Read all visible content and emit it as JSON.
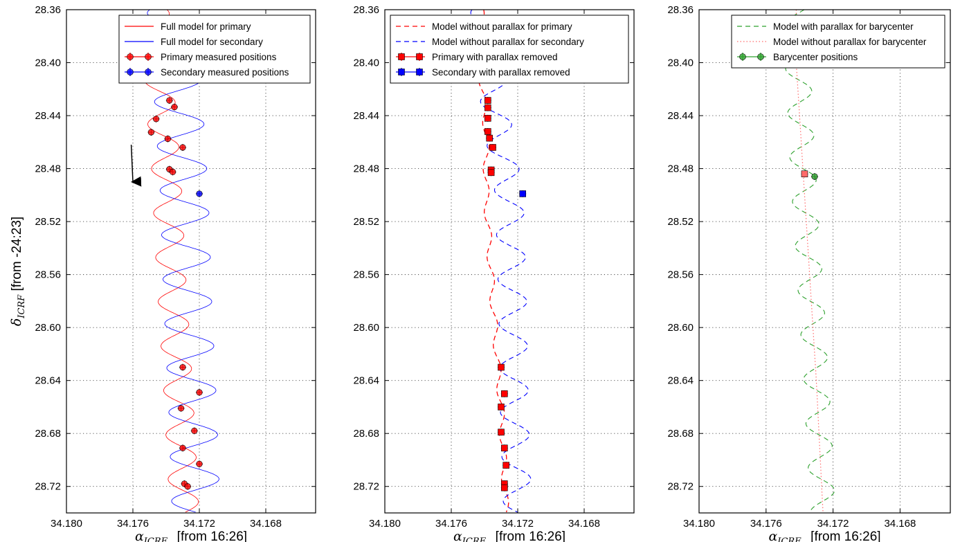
{
  "figure": {
    "ylabel_symbol": "δ",
    "ylabel_subscript": "ICRF",
    "ylabel_suffix": "[from  -24:23]"
  },
  "chart_data": [
    {
      "type": "line",
      "xlabel_symbol": "α",
      "xlabel_subscript": "ICRF",
      "xlabel_suffix": "[from  16:26]",
      "xlim": [
        34.18,
        34.165
      ],
      "ylim": [
        28.74,
        28.36
      ],
      "x_ticks": [
        "34.180",
        "34.176",
        "34.172",
        "34.168"
      ],
      "y_ticks": [
        "28.36",
        "28.40",
        "28.44",
        "28.48",
        "28.52",
        "28.56",
        "28.60",
        "28.64",
        "28.68",
        "28.72"
      ],
      "grid": true,
      "legend_position": "top-right",
      "legend": [
        {
          "label": "Full model for primary",
          "kind": "line",
          "color": "#ff0000",
          "dash": "none"
        },
        {
          "label": "Full model for secondary",
          "kind": "line",
          "color": "#0000ff",
          "dash": "none"
        },
        {
          "label": "Primary measured positions",
          "kind": "marker",
          "color": "#ff0000",
          "marker": "circle"
        },
        {
          "label": "Secondary measured positions",
          "kind": "marker",
          "color": "#0000ff",
          "marker": "circle"
        }
      ],
      "annotations": [
        {
          "type": "arrow",
          "from": [
            34.1761,
            28.462
          ],
          "to": [
            34.176,
            28.49
          ],
          "color": "#000000"
        }
      ],
      "curves": [
        {
          "name": "Full model for primary",
          "color": "#ff0000",
          "dash": "none",
          "width": 0.8,
          "base": [
            [
              34.1747,
              28.36
            ],
            [
              34.1744,
              28.42
            ],
            [
              34.174,
              28.48
            ],
            [
              34.1737,
              28.56
            ],
            [
              34.1733,
              28.64
            ],
            [
              34.1729,
              28.74
            ]
          ],
          "amp": 0.00088,
          "period": 0.0335,
          "phase": 0.6
        },
        {
          "name": "Full model for secondary",
          "color": "#0000ff",
          "dash": "none",
          "width": 0.8,
          "base": [
            [
              34.1737,
              28.36
            ],
            [
              34.1733,
              28.42
            ],
            [
              34.1729,
              28.5
            ],
            [
              34.1727,
              28.58
            ],
            [
              34.1724,
              28.66
            ],
            [
              34.1722,
              28.74
            ]
          ],
          "amp": 0.00145,
          "period": 0.0335,
          "phase": 3.8
        }
      ],
      "points": [
        {
          "series": "Primary measured positions",
          "marker": "circle",
          "color": "#ff0000",
          "xy": [
            [
              34.1738,
              28.4285
            ],
            [
              34.1735,
              28.4335
            ],
            [
              34.1746,
              28.4425
            ],
            [
              34.1749,
              28.4525
            ],
            [
              34.1739,
              28.4575
            ],
            [
              34.173,
              28.464
            ],
            [
              34.1738,
              28.4805
            ],
            [
              34.1736,
              28.4825
            ],
            [
              34.173,
              28.63
            ],
            [
              34.172,
              28.649
            ],
            [
              34.1731,
              28.661
            ],
            [
              34.1723,
              28.678
            ],
            [
              34.173,
              28.691
            ],
            [
              34.172,
              28.703
            ],
            [
              34.1729,
              28.718
            ],
            [
              34.1727,
              28.72
            ]
          ]
        },
        {
          "series": "Secondary measured positions",
          "marker": "circle",
          "color": "#0000ff",
          "xy": [
            [
              34.172,
              28.499
            ]
          ]
        }
      ]
    },
    {
      "type": "line",
      "xlabel_symbol": "α",
      "xlabel_subscript": "ICRF",
      "xlabel_suffix": "[from  16:26]",
      "xlim": [
        34.18,
        34.165
      ],
      "ylim": [
        28.74,
        28.36
      ],
      "x_ticks": [
        "34.180",
        "34.176",
        "34.172",
        "34.168"
      ],
      "y_ticks": [
        "28.36",
        "28.40",
        "28.44",
        "28.48",
        "28.52",
        "28.56",
        "28.60",
        "28.64",
        "28.68",
        "28.72"
      ],
      "grid": true,
      "legend_position": "top-right",
      "legend": [
        {
          "label": "Model without parallax for primary",
          "kind": "line",
          "color": "#ff0000",
          "dash": "7 5"
        },
        {
          "label": "Model without parallax for secondary",
          "kind": "line",
          "color": "#0000ff",
          "dash": "7 5"
        },
        {
          "label": "Primary with parallax removed",
          "kind": "marker",
          "color": "#ff0000",
          "marker": "square"
        },
        {
          "label": "Secondary with parallax removed",
          "kind": "marker",
          "color": "#0000ff",
          "marker": "square"
        }
      ],
      "annotations": [],
      "curves": [
        {
          "name": "Model without parallax for primary",
          "color": "#ff0000",
          "dash": "7 5",
          "width": 1.3,
          "base": [
            [
              34.1742,
              28.41
            ],
            [
              34.1739,
              28.45
            ],
            [
              34.1739,
              28.5
            ],
            [
              34.1735,
              28.58
            ],
            [
              34.173,
              28.66
            ],
            [
              34.1727,
              28.74
            ]
          ],
          "amp": 0.00018,
          "period": 0.0335,
          "phase": 0.6
        },
        {
          "name": "Model without parallax for secondary",
          "color": "#0000ff",
          "dash": "7 5",
          "width": 1.1,
          "base": [
            [
              34.174,
              28.36
            ],
            [
              34.1733,
              28.44
            ],
            [
              34.1725,
              28.5
            ],
            [
              34.1723,
              28.58
            ],
            [
              34.1722,
              28.66
            ],
            [
              34.172,
              28.74
            ]
          ],
          "amp": 0.00085,
          "period": 0.0335,
          "phase": 3.8
        }
      ],
      "points": [
        {
          "series": "Primary with parallax removed",
          "marker": "square",
          "color": "#ff0000",
          "xy": [
            [
              34.1738,
              28.4285
            ],
            [
              34.1738,
              28.434
            ],
            [
              34.1738,
              28.442
            ],
            [
              34.1738,
              28.452
            ],
            [
              34.1737,
              28.457
            ],
            [
              34.1735,
              28.464
            ],
            [
              34.1736,
              28.481
            ],
            [
              34.1736,
              28.483
            ],
            [
              34.173,
              28.63
            ],
            [
              34.1728,
              28.65
            ],
            [
              34.173,
              28.66
            ],
            [
              34.173,
              28.679
            ],
            [
              34.1728,
              28.691
            ],
            [
              34.1727,
              28.704
            ],
            [
              34.1728,
              28.718
            ],
            [
              34.1728,
              28.721
            ]
          ]
        },
        {
          "series": "Secondary with parallax removed",
          "marker": "square",
          "color": "#0000ff",
          "xy": [
            [
              34.1717,
              28.499
            ]
          ]
        }
      ]
    },
    {
      "type": "line",
      "xlabel_symbol": "α",
      "xlabel_subscript": "ICRF",
      "xlabel_suffix": "[from  16:26]",
      "xlim": [
        34.18,
        34.165
      ],
      "ylim": [
        28.74,
        28.36
      ],
      "x_ticks": [
        "34.180",
        "34.176",
        "34.172",
        "34.168"
      ],
      "y_ticks": [
        "28.36",
        "28.40",
        "28.44",
        "28.48",
        "28.52",
        "28.56",
        "28.60",
        "28.64",
        "28.68",
        "28.72"
      ],
      "grid": true,
      "legend_position": "top-right",
      "legend": [
        {
          "label": "Model with parallax for barycenter",
          "kind": "line",
          "color": "#2ca02c",
          "dash": "7 5"
        },
        {
          "label": "Model without parallax for barycenter",
          "kind": "line",
          "color": "#ff6a6a",
          "dash": "1.5 3"
        },
        {
          "label": "Barycenter positions",
          "kind": "marker",
          "color": "#2ca02c",
          "marker": "circle"
        }
      ],
      "annotations": [],
      "curves": [
        {
          "name": "Model with parallax for barycenter",
          "color": "#2ca02c",
          "dash": "7 5",
          "width": 1.1,
          "base": [
            [
              34.1741,
              28.4
            ],
            [
              34.1738,
              28.48
            ],
            [
              34.1734,
              28.56
            ],
            [
              34.173,
              28.64
            ],
            [
              34.1726,
              28.74
            ]
          ],
          "amp": 0.00075,
          "period": 0.0335,
          "phase": 2.2
        },
        {
          "name": "Model without parallax for barycenter",
          "color": "#ff6a6a",
          "dash": "1.5 3",
          "width": 1.2,
          "base": [
            [
              34.1742,
              28.4
            ],
            [
              34.1738,
              28.48
            ],
            [
              34.1734,
              28.56
            ],
            [
              34.173,
              28.64
            ],
            [
              34.1726,
              28.74
            ]
          ],
          "amp": 0.0,
          "period": 0.0335,
          "phase": 0
        }
      ],
      "points": [
        {
          "series": "Barycenter positions",
          "marker": "circle",
          "color": "#2ca02c",
          "xy": [
            [
              34.1731,
              28.486
            ]
          ]
        },
        {
          "series": "Barycenter positions (without parallax)",
          "marker": "square",
          "color": "#ff6a6a",
          "xy": [
            [
              34.1737,
              28.484
            ]
          ]
        }
      ]
    }
  ]
}
